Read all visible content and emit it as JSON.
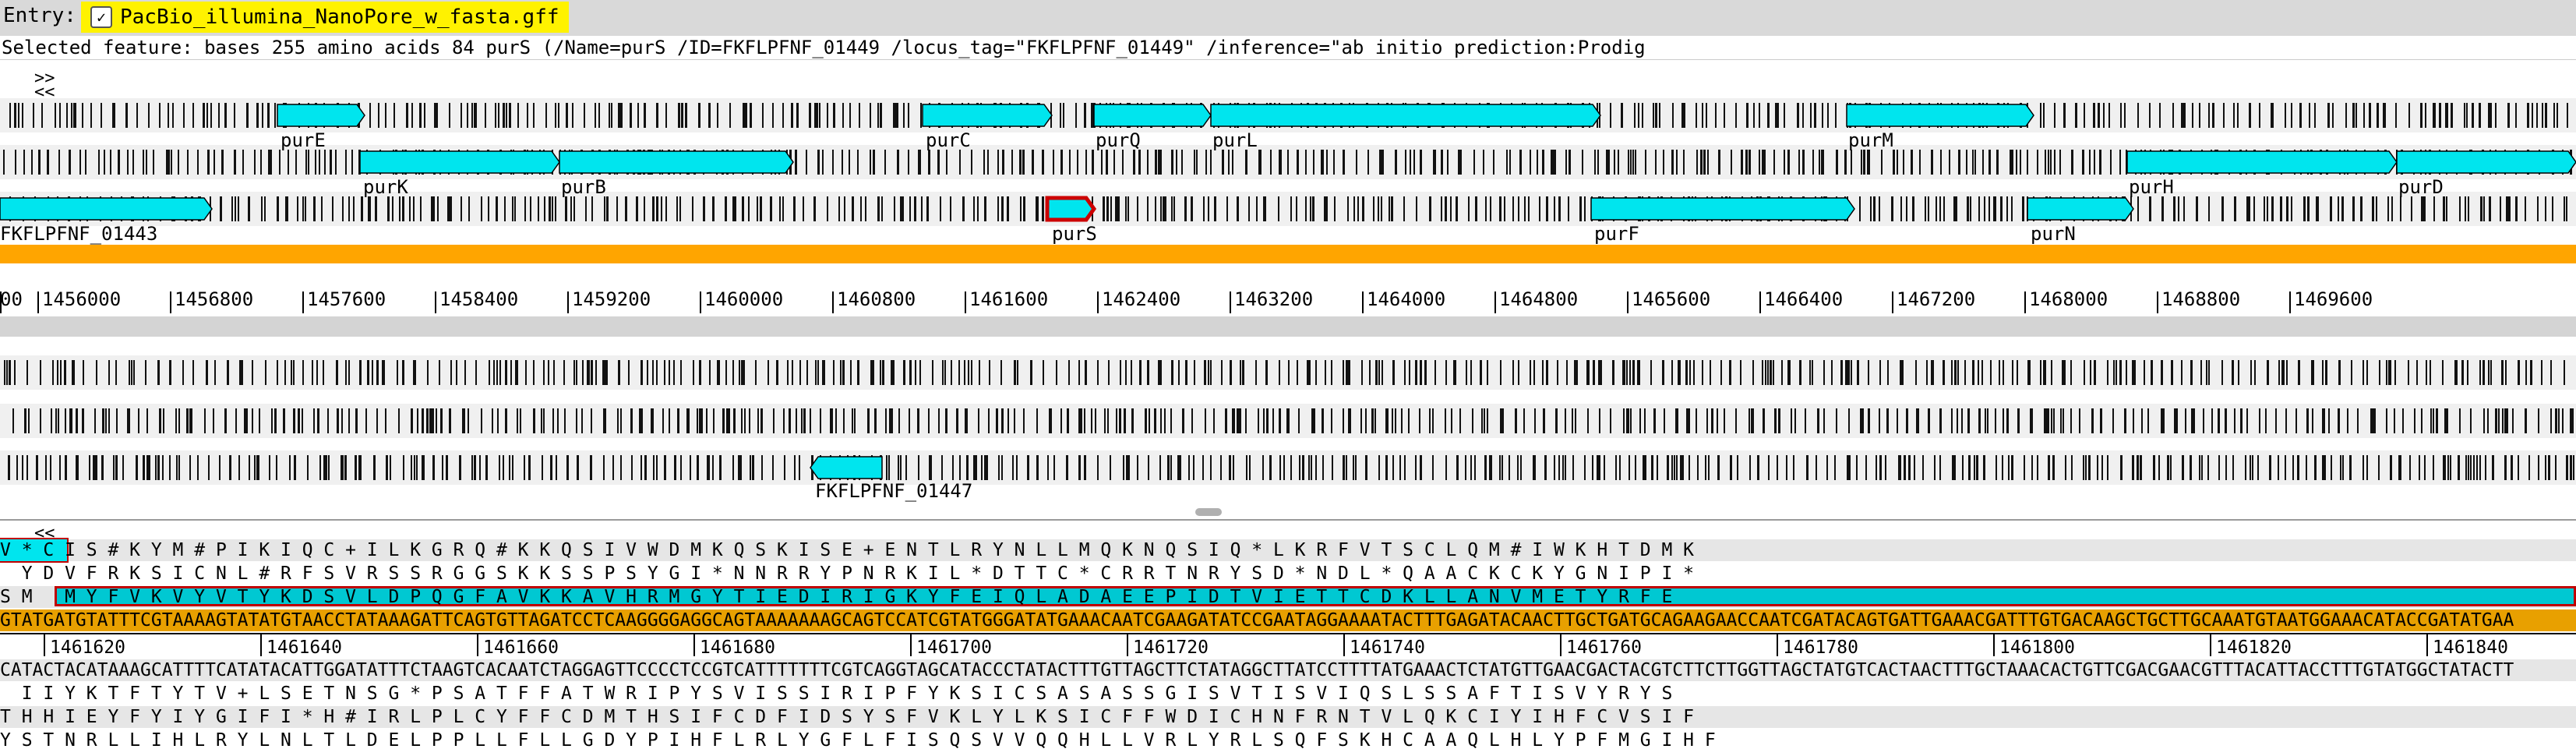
{
  "entry": {
    "label": "Entry:",
    "file": "PacBio_illumina_NanoPore_w_fasta.gff"
  },
  "selected_feature": "Selected feature:  bases 255  amino acids 84  purS  (/Name=purS /ID=FKFLPFNF_01449 /locus_tag=\"FKFLPFNF_01449\" /inference=\"ab initio prediction:Prodig",
  "nav": {
    "forward": ">>",
    "back": "<<",
    "back2": "<<"
  },
  "colors": {
    "feature": "#00e5ee",
    "selected_outline": "#cc0000",
    "orange": "#ffa500",
    "highlight": "#e8a000"
  },
  "overview": {
    "forward_labels": [
      "purE",
      "purC",
      "purQ",
      "purL",
      "purM",
      "purK",
      "purB",
      "purH",
      "purD",
      "FKFLPFNF_01443",
      "purS",
      "purF",
      "purN"
    ],
    "reverse_labels": [
      "FKFLPFNF_01447"
    ],
    "ruler": [
      "00",
      "1456000",
      "1456800",
      "1457600",
      "1458400",
      "1459200",
      "1460000",
      "1460800",
      "1461600",
      "1462400",
      "1463200",
      "1464000",
      "1464800",
      "1465600",
      "1466400",
      "1467200",
      "1468000",
      "1468800",
      "1469600"
    ]
  },
  "detail": {
    "frame1": "V * C I S # K Y M # P I K I Q C + I L K G R Q # K K Q S I V W D M K Q S K I S E + E N T L R Y N L L M Q K N Q S I Q * L K R F V T S C L Q M # I W K H T D M K",
    "frame2": "  Y D V F R K S I C N L # R F S V R S S R G G S K K S S P S Y G I * N N R R Y P N R K I L * D T T C * C R R T N R Y S D * N D L * Q A A C K C K Y G N I P I *",
    "frame3": "S M   M Y F V K V Y V T Y K D S V L D P Q G F A V K K A V H R M G Y T I E D I R I G K Y F E I Q L A D A E E P I D T V I E T T C D K L L A N V M E T Y R F E",
    "dna_forward": "GTATGATGTATTTCGTAAAAGTATATGTAACCTATAAAGATTCAGTGTTAGATCCTCAAGGGGAGGCAGTAAAAAAAGCAGTCCATCGTATGGGATATGAAACAATCGAAGATATCCGAATAGGAAAATACTTTGAGATACAACTTGCTGATGCAGAAGAACCAATCGATACAGTGATTGAAACGATTTGTGACAAGCTGCTTGCAAATGTAATGGAAACATACCGATATGAA",
    "ruler": [
      "1461620",
      "1461640",
      "1461660",
      "1461680",
      "1461700",
      "1461720",
      "1461740",
      "1461760",
      "1461780",
      "1461800",
      "1461820",
      "1461840"
    ],
    "dna_reverse": "CATACTACATAAAGCATTTTCATATACATTGGATATTTCTAAGTCACAATCTAGGAGTTCCCCTCCGTCATTTTTTTCGTCAGGTAGCATACCCTATACTTTGTTAGCTTCTATAGGCTTATCCTTTTATGAAACTCTATGTTGAACGACTACGTCTTCTTGGTTAGCTATGTCACTAACTTTGCTAAACACTGTTCGACGAACGTTTACATTACCTTTGTATGGCTATACTT",
    "rframe1": "  I I Y K T F T Y T V + L S E T N S G * P S A T F F A T W R I P Y S V I S S I R I P F Y K S I C S A S A S S G I S V T I S V I Q S L S S A F T I S V Y R Y S",
    "rframe2": "T H H I E Y F Y I Y G I F I * H # I R L P L C Y F F C D M T H S I F C D F I D S Y S F V K L Y L K S I C F F W D I C H N F R N T V L Q K C I Y I H F C V S I F",
    "rframe3": "Y S T N R L L I H L R Y L N L T L D E L P P L L F L L G D Y P I H F L R L Y G F L F I S Q S V V Q Q H L L V R L Y R L S Q F S K H C A A Q L H L Y P F M G I H F"
  }
}
